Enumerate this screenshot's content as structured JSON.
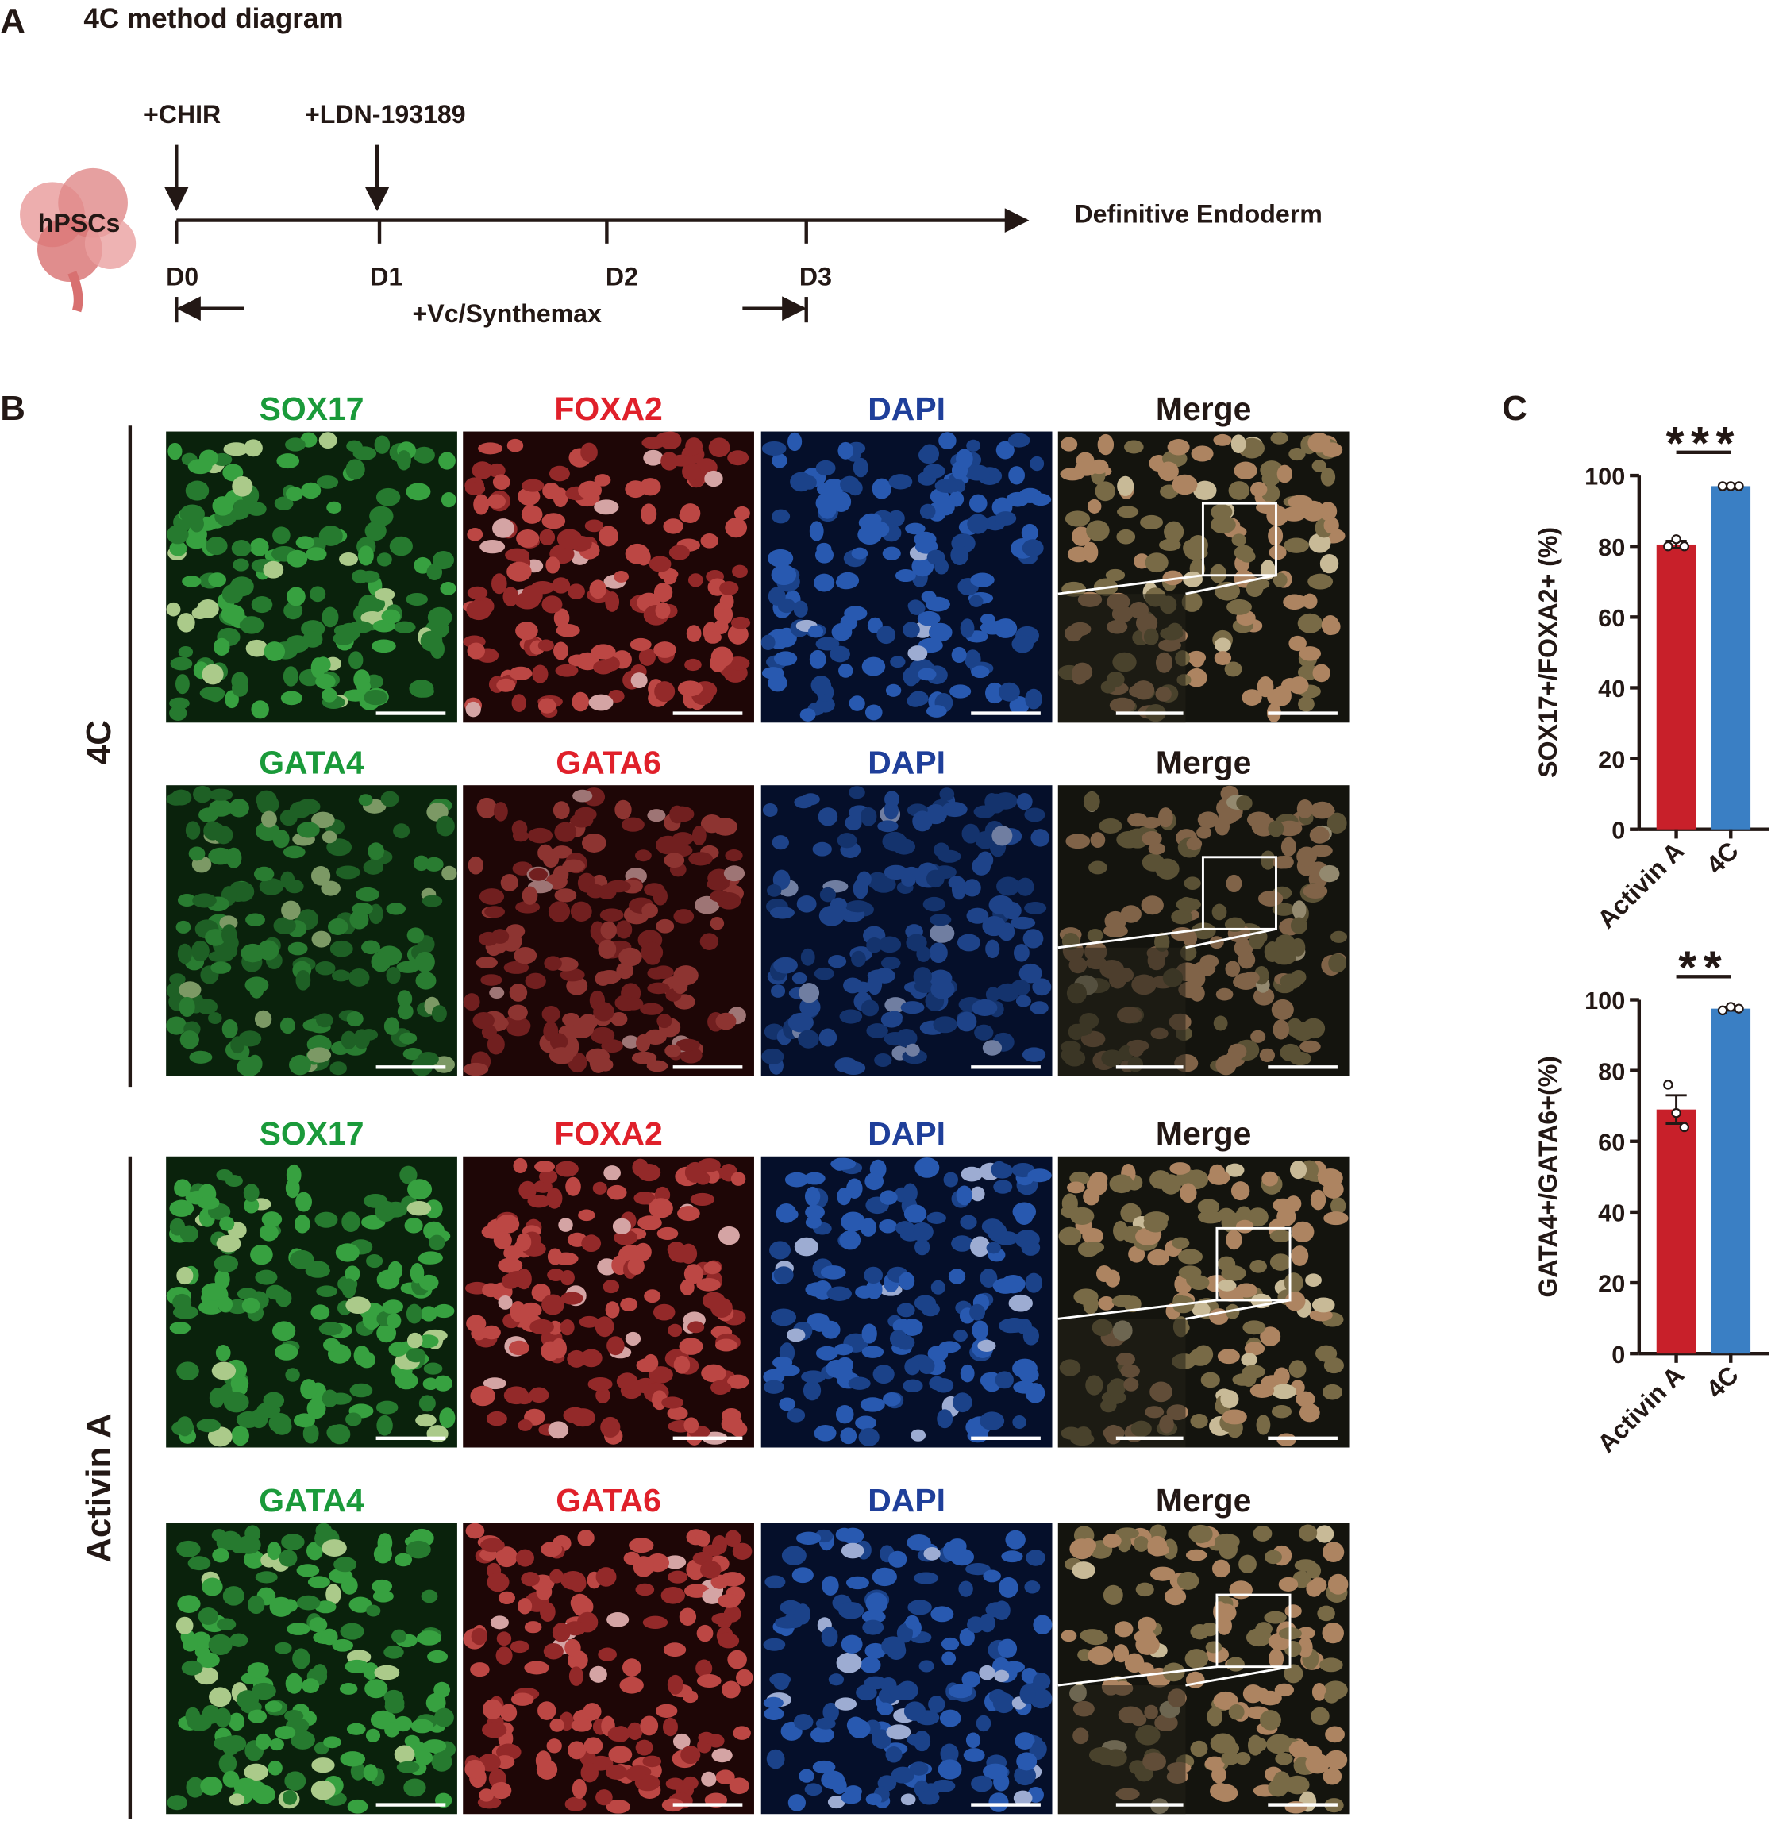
{
  "panel_a": {
    "letter": "A",
    "title": "4C method diagram",
    "cells": "hPSCs",
    "treatments": [
      "+CHIR",
      "+LDN-193189"
    ],
    "days": [
      "D0",
      "D1",
      "D2",
      "D3"
    ],
    "medium": "+Vc/Synthemax",
    "outcome": "Definitive Endoderm"
  },
  "panel_b": {
    "letter": "B",
    "groups": [
      "4C",
      "Activin A"
    ],
    "rows": [
      [
        "SOX17",
        "FOXA2",
        "DAPI",
        "Merge"
      ],
      [
        "GATA4",
        "GATA6",
        "DAPI",
        "Merge"
      ],
      [
        "SOX17",
        "FOXA2",
        "DAPI",
        "Merge"
      ],
      [
        "GATA4",
        "GATA6",
        "DAPI",
        "Merge"
      ]
    ]
  },
  "panel_c": {
    "letter": "C"
  },
  "chart_data": [
    {
      "type": "bar",
      "ylabel": "SOX17+/FOXA2+ (%)",
      "categories": [
        "Activin A",
        "4C"
      ],
      "values": [
        80.5,
        97
      ],
      "errors": [
        1,
        0.3
      ],
      "points": [
        [
          80,
          82,
          80
        ],
        [
          97,
          97,
          97
        ]
      ],
      "colors": [
        "#c8202a",
        "#3a7fc4"
      ],
      "significance": "***",
      "ylim": [
        0,
        100
      ],
      "yticks": [
        0,
        20,
        40,
        60,
        80,
        100
      ]
    },
    {
      "type": "bar",
      "ylabel": "GATA4+/GATA6+(%)",
      "categories": [
        "Activin A",
        "4C"
      ],
      "values": [
        69,
        97.5
      ],
      "errors": [
        4,
        0.5
      ],
      "points": [
        [
          76,
          68,
          64
        ],
        [
          97,
          98,
          97.5
        ]
      ],
      "colors": [
        "#c8202a",
        "#3a7fc4"
      ],
      "significance": "**",
      "ylim": [
        0,
        100
      ],
      "yticks": [
        0,
        20,
        40,
        60,
        80,
        100
      ]
    }
  ]
}
